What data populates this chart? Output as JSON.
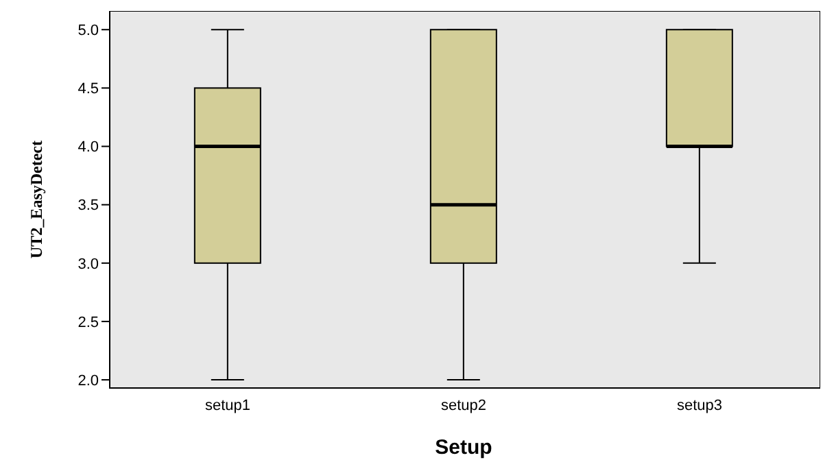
{
  "chart_data": {
    "type": "box",
    "xlabel": "Setup",
    "ylabel": "UT2_EasyDetect",
    "categories": [
      "setup1",
      "setup2",
      "setup3"
    ],
    "color": "#d3ce98",
    "boxes": [
      {
        "low": 2,
        "q1": 3,
        "median": 4,
        "q3": 4.5,
        "high": 5
      },
      {
        "low": 2,
        "q1": 3,
        "median": 3.5,
        "q3": 5,
        "high": 5
      },
      {
        "low": 3,
        "q1": 4,
        "median": 4,
        "q3": 5,
        "high": 5
      }
    ],
    "ylim": [
      1.93,
      5.16
    ],
    "yticks": [
      {
        "value": 2,
        "label": "2.0"
      },
      {
        "value": 2.5,
        "label": "2.5"
      },
      {
        "value": 3,
        "label": "3.0"
      },
      {
        "value": 3.5,
        "label": "3.5"
      },
      {
        "value": 4,
        "label": "4.0"
      },
      {
        "value": 4.5,
        "label": "4.5"
      },
      {
        "value": 5,
        "label": "5.0"
      }
    ]
  }
}
